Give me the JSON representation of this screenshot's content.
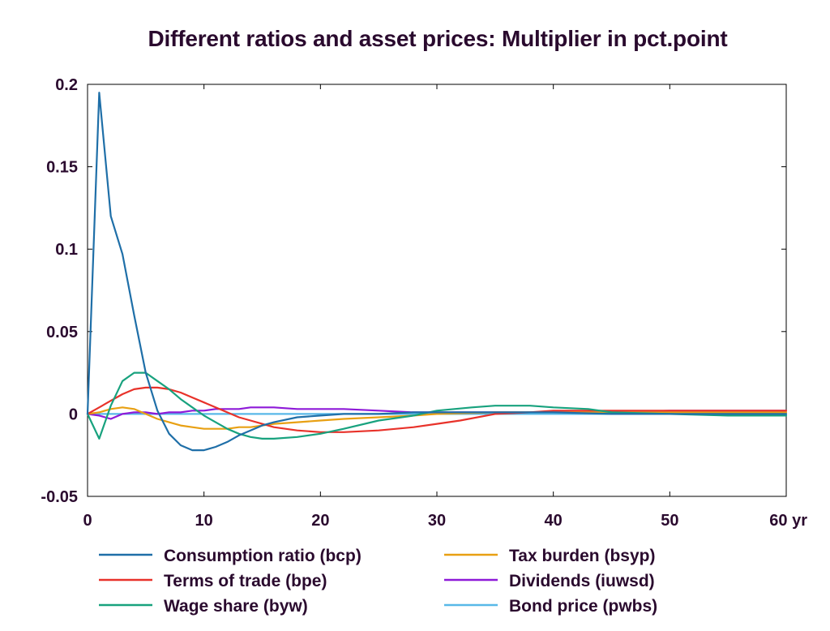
{
  "chart_data": {
    "type": "line",
    "title": "Different ratios and asset prices: Multiplier in pct.point",
    "xlabel": "",
    "ylabel": "",
    "xlim": [
      0,
      60
    ],
    "ylim": [
      -0.05,
      0.2
    ],
    "x_ticks": [
      0,
      10,
      20,
      30,
      40,
      50,
      60
    ],
    "x_tick_labels": [
      "0",
      "10",
      "20",
      "30",
      "40",
      "50",
      "60 yr"
    ],
    "y_ticks": [
      -0.05,
      0,
      0.05,
      0.1,
      0.15,
      0.2
    ],
    "y_tick_labels": [
      "-0.05",
      "0",
      "0.05",
      "0.1",
      "0.15",
      "0.2"
    ],
    "grid": false,
    "legend_placement": "bottom",
    "series": [
      {
        "name": "Consumption ratio (bcp)",
        "color": "#1f6fa8",
        "x": [
          0,
          1,
          2,
          3,
          4,
          5,
          6,
          7,
          8,
          9,
          10,
          11,
          12,
          13,
          14,
          15,
          16,
          18,
          20,
          22,
          25,
          28,
          30,
          35,
          40,
          45,
          50,
          55,
          60
        ],
        "y": [
          0,
          0.195,
          0.12,
          0.097,
          0.06,
          0.025,
          0.002,
          -0.012,
          -0.019,
          -0.022,
          -0.022,
          -0.02,
          -0.017,
          -0.013,
          -0.01,
          -0.007,
          -0.005,
          -0.002,
          -0.001,
          0,
          0,
          0.001,
          0.001,
          0.001,
          0.001,
          0,
          0,
          0,
          0
        ]
      },
      {
        "name": "Terms of trade (bpe)",
        "color": "#e8322a",
        "x": [
          0,
          1,
          2,
          3,
          4,
          5,
          6,
          7,
          8,
          9,
          10,
          11,
          12,
          13,
          14,
          15,
          16,
          18,
          20,
          22,
          25,
          28,
          30,
          32,
          35,
          38,
          40,
          45,
          50,
          55,
          60
        ],
        "y": [
          0,
          0.004,
          0.008,
          0.012,
          0.015,
          0.016,
          0.016,
          0.015,
          0.013,
          0.01,
          0.007,
          0.004,
          0.001,
          -0.002,
          -0.004,
          -0.006,
          -0.008,
          -0.01,
          -0.011,
          -0.011,
          -0.01,
          -0.008,
          -0.006,
          -0.004,
          0,
          0.001,
          0.002,
          0.002,
          0.002,
          0.002,
          0.002
        ]
      },
      {
        "name": "Wage share (byw)",
        "color": "#18a27e",
        "x": [
          0,
          1,
          2,
          3,
          4,
          5,
          6,
          7,
          8,
          9,
          10,
          11,
          12,
          13,
          14,
          15,
          16,
          18,
          20,
          22,
          25,
          28,
          30,
          33,
          35,
          38,
          40,
          43,
          45,
          50,
          55,
          60
        ],
        "y": [
          0,
          -0.015,
          0.005,
          0.02,
          0.025,
          0.025,
          0.02,
          0.015,
          0.009,
          0.004,
          -0.001,
          -0.005,
          -0.009,
          -0.012,
          -0.014,
          -0.015,
          -0.015,
          -0.014,
          -0.012,
          -0.009,
          -0.004,
          -0.001,
          0.002,
          0.004,
          0.005,
          0.005,
          0.004,
          0.003,
          0.001,
          0,
          -0.001,
          -0.001
        ]
      },
      {
        "name": "Tax burden (bsyp)",
        "color": "#e8a013",
        "x": [
          0,
          1,
          2,
          3,
          4,
          5,
          6,
          7,
          8,
          9,
          10,
          11,
          12,
          13,
          14,
          15,
          16,
          18,
          20,
          22,
          25,
          28,
          30,
          35,
          40,
          45,
          50,
          55,
          60
        ],
        "y": [
          0,
          0.001,
          0.003,
          0.004,
          0.003,
          0.0,
          -0.003,
          -0.005,
          -0.007,
          -0.008,
          -0.009,
          -0.009,
          -0.009,
          -0.008,
          -0.008,
          -0.007,
          -0.006,
          -0.005,
          -0.004,
          -0.003,
          -0.002,
          -0.001,
          0,
          0.001,
          0.001,
          0.001,
          0.001,
          0.001,
          0.001
        ]
      },
      {
        "name": "Dividends (iuwsd)",
        "color": "#8e1ad8",
        "x": [
          0,
          1,
          2,
          3,
          4,
          5,
          6,
          7,
          8,
          9,
          10,
          11,
          12,
          13,
          14,
          15,
          16,
          18,
          20,
          22,
          25,
          28,
          30,
          35,
          40,
          45,
          50,
          55,
          60
        ],
        "y": [
          0,
          -0.001,
          -0.003,
          0.0,
          0.001,
          0.001,
          0.0,
          0.001,
          0.001,
          0.002,
          0.002,
          0.003,
          0.003,
          0.003,
          0.004,
          0.004,
          0.004,
          0.003,
          0.003,
          0.003,
          0.002,
          0.001,
          0.001,
          0.001,
          0.001,
          0.001,
          0.002,
          0.002,
          0.002
        ]
      },
      {
        "name": "Bond price (pwbs)",
        "color": "#58b8e8",
        "x": [
          0,
          10,
          20,
          30,
          40,
          50,
          60
        ],
        "y": [
          0,
          0,
          0,
          0,
          0,
          0,
          0
        ]
      }
    ]
  }
}
